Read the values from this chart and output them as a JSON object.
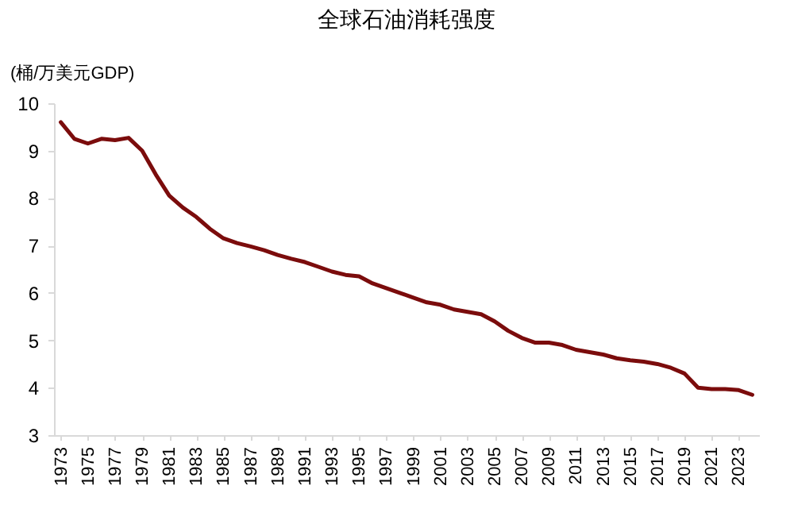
{
  "chart_data": {
    "type": "line",
    "title": "全球石油消耗强度",
    "ylabel": "(桶/万美元GDP)",
    "x": [
      1973,
      1974,
      1975,
      1976,
      1977,
      1978,
      1979,
      1980,
      1981,
      1982,
      1983,
      1984,
      1985,
      1986,
      1987,
      1988,
      1989,
      1990,
      1991,
      1992,
      1993,
      1994,
      1995,
      1996,
      1997,
      1998,
      1999,
      2000,
      2001,
      2002,
      2003,
      2004,
      2005,
      2006,
      2007,
      2008,
      2009,
      2010,
      2011,
      2012,
      2013,
      2014,
      2015,
      2016,
      2017,
      2018,
      2019,
      2020,
      2021,
      2022,
      2023,
      2024
    ],
    "series": [
      {
        "color": "#7b0c0c",
        "values": [
          9.6,
          9.25,
          9.15,
          9.25,
          9.22,
          9.27,
          9.0,
          8.5,
          8.05,
          7.8,
          7.6,
          7.35,
          7.15,
          7.05,
          6.98,
          6.9,
          6.8,
          6.72,
          6.65,
          6.55,
          6.45,
          6.38,
          6.35,
          6.2,
          6.1,
          6.0,
          5.9,
          5.8,
          5.75,
          5.65,
          5.6,
          5.55,
          5.4,
          5.2,
          5.05,
          4.95,
          4.95,
          4.9,
          4.8,
          4.75,
          4.7,
          4.62,
          4.58,
          4.55,
          4.5,
          4.42,
          4.3,
          4.0,
          3.97,
          3.97,
          3.95,
          3.85
        ]
      }
    ],
    "xlim": [
      1972.5,
      2024.5
    ],
    "xticks": [
      1973,
      1975,
      1977,
      1979,
      1981,
      1983,
      1985,
      1987,
      1989,
      1991,
      1993,
      1995,
      1997,
      1999,
      2001,
      2003,
      2005,
      2007,
      2009,
      2011,
      2013,
      2015,
      2017,
      2019,
      2021,
      2023
    ],
    "ylim": [
      3,
      10
    ],
    "yticks": [
      3,
      4,
      5,
      6,
      7,
      8,
      9,
      10
    ],
    "grid": false,
    "legend": false,
    "marker": "none",
    "line_style": "solid"
  }
}
